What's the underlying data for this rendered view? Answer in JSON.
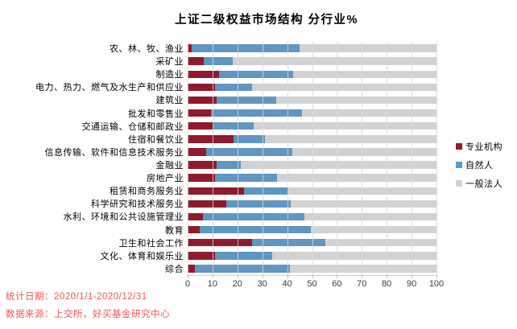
{
  "chart_data": {
    "type": "bar",
    "orientation": "horizontal",
    "stacked": true,
    "title": "上证二级权益市场结构 分行业%",
    "categories": [
      "农、林、牧、渔业",
      "采矿业",
      "制造业",
      "电力、热力、燃气及水生产和供应业",
      "建筑业",
      "批发和零售业",
      "交通运输、仓储和邮政业",
      "住宿和餐饮业",
      "信息传输、软件和信息技术服务业",
      "金融业",
      "房地产业",
      "租赁和商务服务业",
      "科学研究和技术服务业",
      "水利、环境和公共设施管理业",
      "教育",
      "卫生和社会工作",
      "文化、体育和娱乐业",
      "综合"
    ],
    "series": [
      {
        "name": "专业机构",
        "key": "professional-institutions",
        "color": "#8e1b2d",
        "values": [
          1.5,
          6.5,
          12.5,
          11,
          11.5,
          9.5,
          10.5,
          18.5,
          7.5,
          11.5,
          11,
          22.5,
          15.5,
          6,
          5,
          26,
          11,
          3
        ]
      },
      {
        "name": "自然人",
        "key": "natural-persons",
        "color": "#6096c1",
        "values": [
          43.5,
          11.5,
          30,
          15,
          24,
          36.5,
          16,
          12.5,
          34.5,
          10,
          25,
          18,
          26,
          41,
          44.5,
          29.5,
          23,
          38
        ]
      },
      {
        "name": "一般法人",
        "key": "general-legal-persons",
        "color": "#d2d2d2",
        "values": [
          55,
          82,
          57.5,
          74,
          64.5,
          54,
          73.5,
          69,
          58,
          78.5,
          64,
          59.5,
          58.5,
          53,
          50.5,
          44.5,
          66,
          59
        ]
      }
    ],
    "x_ticks": [
      0,
      10,
      20,
      30,
      40,
      50,
      60,
      70,
      80,
      90,
      100
    ],
    "xlim": [
      0,
      100
    ],
    "xlabel": "",
    "ylabel": "",
    "grid": true,
    "legend_position": "right"
  },
  "footer": {
    "stat_date": "统计日期：2020/1/1-2020/12/31",
    "data_source": "数据来源：上交所，好买基金研究中心"
  },
  "colors": {
    "gridline": "#d9d9d9",
    "axis_text": "#3c3c3c",
    "footer_text": "#fb5454",
    "title_text": "#000000",
    "background": "#ffffff"
  }
}
